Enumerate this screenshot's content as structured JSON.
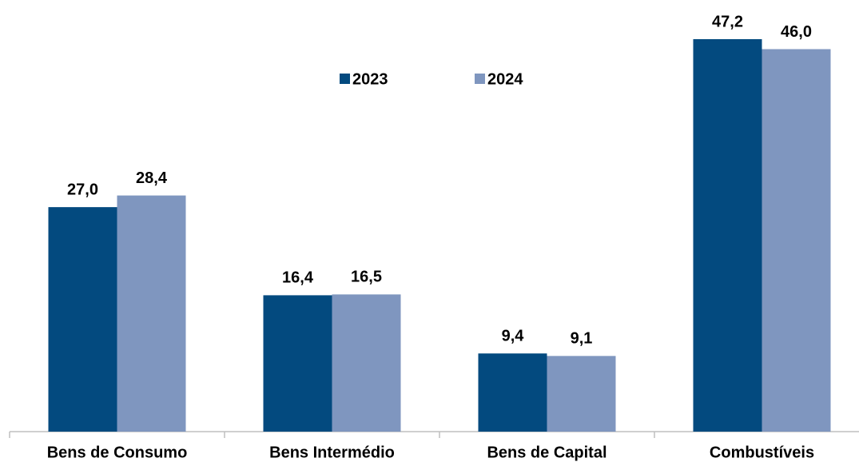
{
  "chart_data": {
    "type": "bar",
    "categories": [
      "Bens de Consumo",
      "Bens Intermédio",
      "Bens de Capital",
      "Combustíveis"
    ],
    "series": [
      {
        "name": "2023",
        "color": "#034a7f",
        "values": [
          27.0,
          16.4,
          9.4,
          47.2
        ],
        "value_labels": [
          "27,0",
          "16,4",
          "9,4",
          "47,2"
        ]
      },
      {
        "name": "2024",
        "color": "#7f96bf",
        "values": [
          28.4,
          16.5,
          9.1,
          46.0
        ],
        "value_labels": [
          "28,4",
          "16,5",
          "9,1",
          "46,0"
        ]
      }
    ],
    "legend": "top"
  }
}
